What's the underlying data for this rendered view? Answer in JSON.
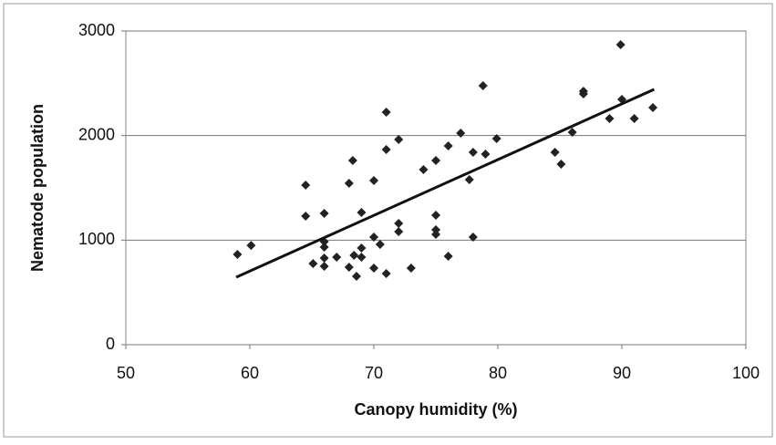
{
  "chart_data": {
    "type": "scatter",
    "xlabel": "Canopy humidity (%)",
    "ylabel": "Nematode population",
    "x": [
      59,
      60.1,
      64.5,
      64.5,
      65.1,
      66,
      66,
      66,
      66,
      66,
      67,
      68,
      68.3,
      68,
      68.4,
      68.6,
      69,
      69,
      69,
      70,
      70,
      70,
      70.5,
      71,
      71,
      71,
      72,
      72,
      72,
      73,
      74,
      75,
      75,
      75,
      75,
      76,
      76,
      77,
      77.7,
      78,
      78,
      78.8,
      79,
      79.9,
      84.6,
      85.1,
      86,
      86.9,
      86.9,
      89,
      89.9,
      90,
      91,
      92.5
    ],
    "y": [
      863,
      950,
      1526,
      1230,
      776,
      1256,
      985,
      933,
      828,
      750,
      837,
      1544,
      1762,
      741,
      855,
      654,
      1265,
      924,
      837,
      1570,
      1029,
      733,
      959,
      2224,
      1866,
      680,
      1962,
      1160,
      1081,
      733,
      1674,
      1762,
      1238,
      1099,
      1055,
      1901,
      846,
      2023,
      1578,
      1840,
      1029,
      2477,
      1823,
      1971,
      1840,
      1727,
      2032,
      2424,
      2398,
      2163,
      2869,
      2346,
      2163,
      2267
    ],
    "color": "#222222",
    "trendline": {
      "x": [
        58.9,
        92.6
      ],
      "y": [
        645,
        2442
      ],
      "color": "#111111"
    },
    "xlim": [
      50,
      100
    ],
    "xticks": [
      50,
      60,
      70,
      80,
      90,
      100
    ],
    "ylim": [
      0,
      3000
    ],
    "yticks": [
      0,
      1000,
      2000,
      3000
    ],
    "grid": true
  }
}
